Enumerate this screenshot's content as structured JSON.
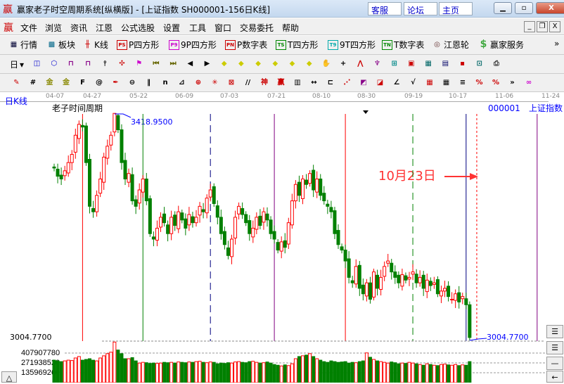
{
  "window": {
    "logo": "赢",
    "title": "赢家老子时空周期系统[纵横版] - [上证指数  SH000001-156日K线]",
    "links": [
      "客服",
      "论坛",
      "主页"
    ],
    "controls": [
      "minimize",
      "maximize",
      "close"
    ]
  },
  "menu": {
    "logo": "赢",
    "items": [
      "文件",
      "浏览",
      "资讯",
      "江恩",
      "公式选股",
      "设置",
      "工具",
      "窗口",
      "交易委托",
      "帮助"
    ]
  },
  "toolbar1": [
    {
      "icon": "quote-table-icon",
      "label": "行情"
    },
    {
      "icon": "sector-icon",
      "label": "板块"
    },
    {
      "icon": "kline-icon",
      "label": "K线"
    },
    {
      "icon": "ps-box-icon",
      "badge": "PS",
      "label": "P四方形"
    },
    {
      "icon": "p9-box-icon",
      "badge": "P9",
      "label": "9P四方形"
    },
    {
      "icon": "pn-box-icon",
      "badge": "PN",
      "label": "P数字表"
    },
    {
      "icon": "ts-box-icon",
      "badge": "TS",
      "label": "T四方形"
    },
    {
      "icon": "t9-box-icon",
      "badge": "T9",
      "label": "9T四方形"
    },
    {
      "icon": "tn-box-icon",
      "badge": "TN",
      "label": "T数字表"
    },
    {
      "icon": "gann-wheel-icon",
      "label": "江恩轮"
    },
    {
      "icon": "dollar-icon",
      "label": "赢家服务"
    }
  ],
  "toolbar2": {
    "period": "日"
  },
  "chart": {
    "period_label": "日K线",
    "indicator": "老子时间周期",
    "symbol": "000001",
    "name": "上证指数",
    "dates": [
      "04-07",
      "04-27",
      "05-22",
      "06-09",
      "07-03",
      "07-21",
      "08-10",
      "08-30",
      "09-19",
      "10-17",
      "11-06",
      "11-24"
    ],
    "high_label": "3418.9500",
    "low_label": "3004.7700",
    "price_axis_low": "3004.7700",
    "annotation": "10月23日",
    "high": 3418.95,
    "low": 3004.77,
    "closes": [
      3320,
      3305,
      3300,
      3315,
      3330,
      3345,
      3380,
      3400,
      3395,
      3330,
      3250,
      3240,
      3270,
      3300,
      3340,
      3360,
      3380,
      3420,
      3390,
      3330,
      3300,
      3310,
      3260,
      3250,
      3280,
      3300,
      3260,
      3200,
      3190,
      3210,
      3230,
      3220,
      3200,
      3230,
      3215,
      3240,
      3225,
      3210,
      3235,
      3220,
      3230,
      3250,
      3240,
      3265,
      3280,
      3255,
      3230,
      3200,
      3180,
      3160,
      3190,
      3230,
      3250,
      3235,
      3220,
      3200,
      3210,
      3230,
      3215,
      3240,
      3225,
      3200,
      3190,
      3170,
      3185,
      3175,
      3220,
      3260,
      3290,
      3270,
      3300,
      3290,
      3310,
      3280,
      3300,
      3270,
      3260,
      3250,
      3240,
      3200,
      3180,
      3170,
      3150,
      3120,
      3110,
      3140,
      3100,
      3090,
      3110,
      3080,
      3130,
      3100,
      3120,
      3140,
      3150,
      3130,
      3120,
      3110,
      3125,
      3115,
      3120,
      3130,
      3110,
      3120,
      3100,
      3115,
      3105,
      3110,
      3090,
      3095,
      3100,
      3085,
      3080,
      3090,
      3075,
      3085,
      3070,
      3010
    ],
    "cycle_lines": [
      {
        "date_index": 8,
        "color": "#ff0000",
        "style": "solid"
      },
      {
        "date_index": 25,
        "color": "#008000",
        "style": "solid"
      },
      {
        "date_index": 44,
        "color": "#000080",
        "style": "dashed"
      },
      {
        "date_index": 62,
        "color": "#800080",
        "style": "solid"
      },
      {
        "date_index": 82,
        "color": "#ff0000",
        "style": "solid"
      },
      {
        "date_index": 101,
        "color": "#008000",
        "style": "dashed"
      },
      {
        "date_index": 116,
        "color": "#000080",
        "style": "solid"
      },
      {
        "date_index": 119,
        "color": "#ff0000",
        "style": "dotted"
      },
      {
        "date_index": 136,
        "color": "#800080",
        "style": "solid"
      }
    ]
  },
  "volume": {
    "labels": [
      "407907780",
      "271938520",
      "135969260"
    ],
    "levels": [
      407907780,
      271938520,
      135969260
    ],
    "values": [
      310000000,
      300000000,
      290000000,
      300000000,
      310000000,
      305000000,
      340000000,
      360000000,
      310000000,
      320000000,
      330000000,
      310000000,
      300000000,
      340000000,
      370000000,
      400000000,
      420000000,
      560000000,
      450000000,
      400000000,
      330000000,
      330000000,
      345000000,
      300000000,
      270000000,
      280000000,
      275000000,
      265000000,
      270000000,
      265000000,
      270000000,
      280000000,
      275000000,
      280000000,
      270000000,
      285000000,
      280000000,
      275000000,
      285000000,
      280000000,
      290000000,
      295000000,
      280000000,
      275000000,
      285000000,
      280000000,
      260000000,
      270000000,
      265000000,
      275000000,
      270000000,
      285000000,
      290000000,
      280000000,
      275000000,
      290000000,
      295000000,
      280000000,
      270000000,
      275000000,
      285000000,
      270000000,
      250000000,
      240000000,
      230000000,
      245000000,
      235000000,
      260000000,
      330000000,
      360000000,
      370000000,
      380000000,
      400000000,
      360000000,
      330000000,
      310000000,
      290000000,
      280000000,
      300000000,
      290000000,
      280000000,
      285000000,
      290000000,
      270000000,
      280000000,
      275000000,
      290000000,
      300000000,
      410000000,
      350000000,
      320000000,
      300000000,
      290000000,
      280000000,
      270000000,
      285000000,
      275000000,
      260000000,
      270000000,
      265000000,
      280000000,
      270000000,
      260000000,
      250000000,
      240000000,
      260000000,
      250000000,
      240000000,
      235000000,
      250000000,
      255000000,
      245000000,
      240000000,
      250000000,
      235000000,
      245000000,
      240000000,
      290000000
    ]
  },
  "colors": {
    "up": "#ff0000",
    "down": "#008000",
    "label_blue": "#0000ff",
    "annotation": "#ff3333"
  }
}
